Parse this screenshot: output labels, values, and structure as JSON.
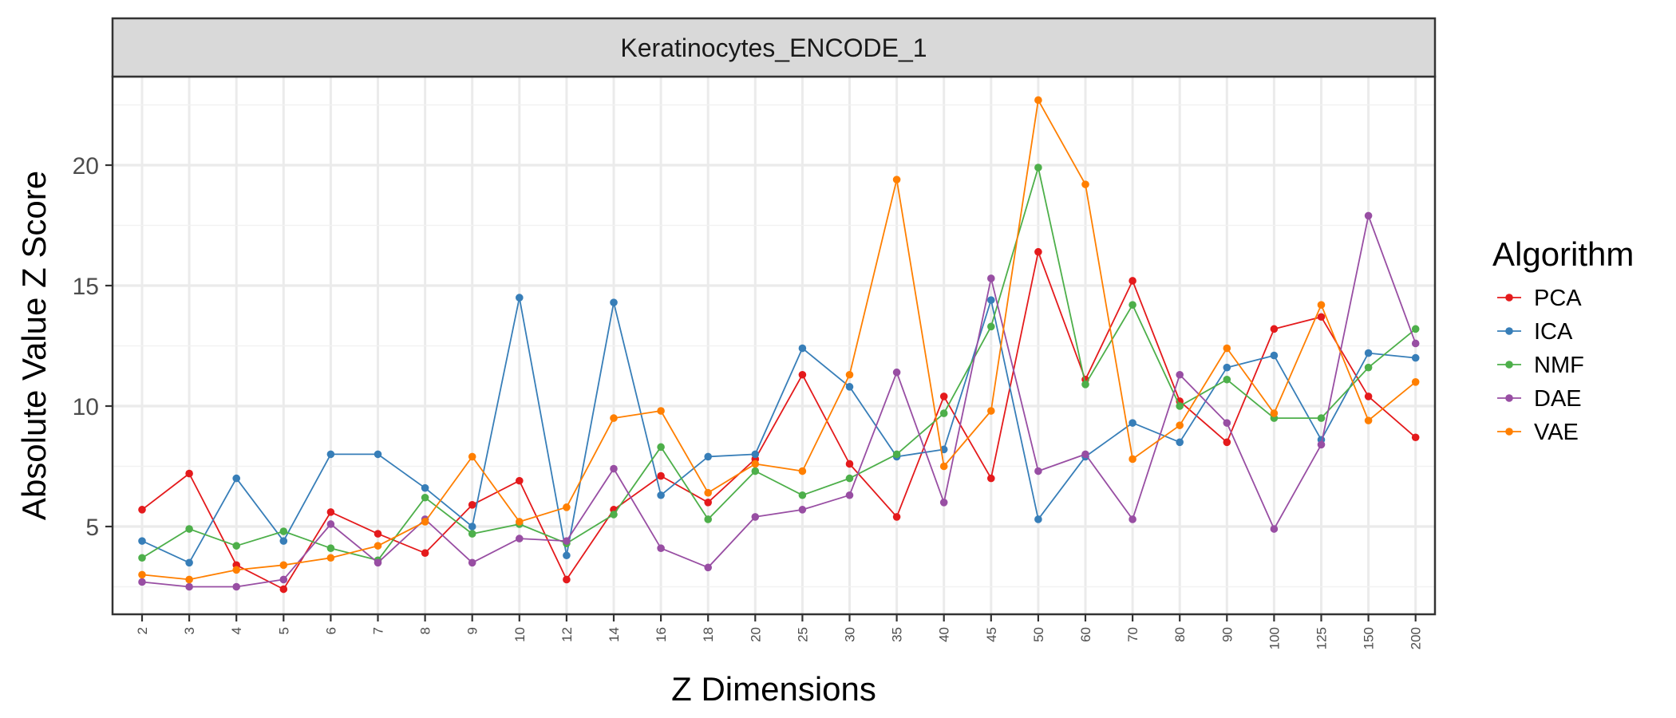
{
  "chart_data": {
    "type": "line",
    "title": "",
    "facet_label": "Keratinocytes_ENCODE_1",
    "xlabel": "Z Dimensions",
    "ylabel": "Absolute Value Z Score",
    "x": [
      "2",
      "3",
      "4",
      "5",
      "6",
      "7",
      "8",
      "9",
      "10",
      "12",
      "14",
      "16",
      "18",
      "20",
      "25",
      "30",
      "35",
      "40",
      "45",
      "50",
      "60",
      "70",
      "80",
      "90",
      "100",
      "125",
      "150",
      "200"
    ],
    "y_ticks": [
      5,
      10,
      15,
      20
    ],
    "ylim": [
      1.5,
      24.3
    ],
    "grid": true,
    "legend_position": "right",
    "legend_title": "Algorithm",
    "series": [
      {
        "name": "PCA",
        "color": "#e41a1c",
        "values": [
          5.7,
          7.2,
          3.4,
          2.4,
          5.6,
          4.7,
          3.9,
          5.9,
          6.9,
          2.8,
          5.7,
          7.1,
          6.0,
          7.8,
          11.3,
          7.6,
          5.4,
          10.4,
          7.0,
          16.4,
          11.1,
          15.2,
          10.2,
          8.5,
          13.2,
          13.7,
          10.4,
          8.7
        ]
      },
      {
        "name": "ICA",
        "color": "#377eb8",
        "values": [
          4.4,
          3.5,
          7.0,
          4.4,
          8.0,
          8.0,
          6.6,
          5.0,
          14.5,
          3.8,
          14.3,
          6.3,
          7.9,
          8.0,
          12.4,
          10.8,
          7.9,
          8.2,
          14.4,
          5.3,
          7.9,
          9.3,
          8.5,
          11.6,
          12.1,
          8.6,
          12.2,
          12.0
        ]
      },
      {
        "name": "NMF",
        "color": "#4daf4a",
        "values": [
          3.7,
          4.9,
          4.2,
          4.8,
          4.1,
          3.6,
          6.2,
          4.7,
          5.1,
          4.3,
          5.5,
          8.3,
          5.3,
          7.3,
          6.3,
          7.0,
          8.0,
          9.7,
          13.3,
          19.9,
          10.9,
          14.2,
          10.0,
          11.1,
          9.5,
          9.5,
          11.6,
          13.2
        ]
      },
      {
        "name": "DAE",
        "color": "#984ea3",
        "values": [
          2.7,
          2.5,
          2.5,
          2.8,
          5.1,
          3.5,
          5.3,
          3.5,
          4.5,
          4.4,
          7.4,
          4.1,
          3.3,
          5.4,
          5.7,
          6.3,
          11.4,
          6.0,
          15.3,
          7.3,
          8.0,
          5.3,
          11.3,
          9.3,
          4.9,
          8.4,
          17.9,
          12.6
        ]
      },
      {
        "name": "VAE",
        "color": "#ff7f00",
        "values": [
          3.0,
          2.8,
          3.2,
          3.4,
          3.7,
          4.2,
          5.2,
          7.9,
          5.2,
          5.8,
          9.5,
          9.8,
          6.4,
          7.6,
          7.3,
          11.3,
          19.4,
          7.5,
          9.8,
          22.7,
          19.2,
          7.8,
          9.2,
          12.4,
          9.7,
          14.2,
          9.4,
          11.0
        ]
      }
    ]
  }
}
